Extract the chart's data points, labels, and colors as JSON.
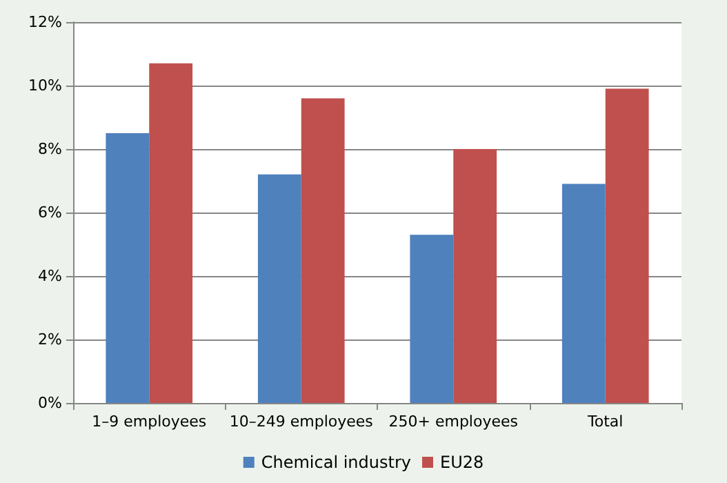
{
  "chart_data": {
    "type": "bar",
    "categories": [
      "1–9 employees",
      "10–249 employees",
      "250+ employees",
      "Total"
    ],
    "series": [
      {
        "name": "Chemical industry",
        "color": "#4f81bd",
        "values": [
          8.5,
          7.2,
          5.3,
          6.9
        ]
      },
      {
        "name": "EU28",
        "color": "#c0504d",
        "values": [
          10.7,
          9.6,
          8.0,
          9.9
        ]
      }
    ],
    "ylim": [
      0,
      12
    ],
    "yticks": [
      {
        "value": 0,
        "label": "0%"
      },
      {
        "value": 2,
        "label": "2%"
      },
      {
        "value": 4,
        "label": "4%"
      },
      {
        "value": 6,
        "label": "6%"
      },
      {
        "value": 8,
        "label": "8%"
      },
      {
        "value": 10,
        "label": "10%"
      },
      {
        "value": 12,
        "label": "12%"
      }
    ],
    "grid": "y",
    "legend": "bottom"
  }
}
